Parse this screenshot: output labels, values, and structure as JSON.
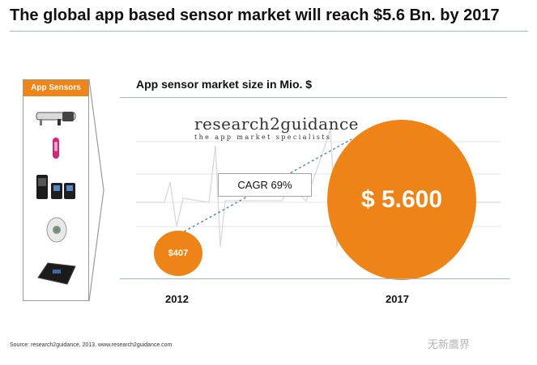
{
  "title": "The global app based sensor market will reach $5.6 Bn. by 2017",
  "sidebar": {
    "header": "App Sensors",
    "items": [
      "smart-glasses-icon",
      "fitness-band-icon",
      "smart-sensor-devices-icon",
      "clip-tracker-icon",
      "smart-scale-icon"
    ]
  },
  "chart_data": {
    "type": "bubble",
    "title": "App sensor market size in Mio. $",
    "categories": [
      "2012",
      "2017"
    ],
    "values": [
      407,
      5600
    ],
    "value_labels": [
      "$407",
      "$ 5.600"
    ],
    "annotation": "CAGR 69%"
  },
  "brand": {
    "name": "research2guidance",
    "tagline": "the app market specialists"
  },
  "source": "Source: research2guidance, 2013. www.research2guidance.com",
  "watermark": "无新鷹界",
  "colors": {
    "accent": "#ee8417",
    "rule": "#9bb7c9"
  }
}
